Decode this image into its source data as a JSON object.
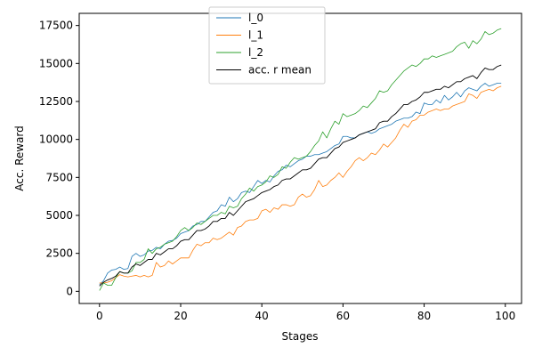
{
  "chart_data": {
    "type": "line",
    "title": "",
    "xlabel": "Stages",
    "ylabel": "Acc. Reward",
    "xlim": [
      -5,
      104
    ],
    "ylim": [
      -800,
      18300
    ],
    "x_ticks": [
      0,
      20,
      40,
      60,
      80,
      100
    ],
    "y_ticks": [
      0,
      2500,
      5000,
      7500,
      10000,
      12500,
      15000,
      17500
    ],
    "x_tick_labels": [
      "0",
      "20",
      "40",
      "60",
      "80",
      "100"
    ],
    "y_tick_labels": [
      "0",
      "2500",
      "5000",
      "7500",
      "10000",
      "12500",
      "15000",
      "17500"
    ],
    "grid": false,
    "legend_position": "top-center",
    "series": [
      {
        "name": "l_0",
        "color": "#1f77b4",
        "values": [
          450,
          700,
          1200,
          1400,
          1450,
          1600,
          1450,
          1500,
          2300,
          2500,
          2300,
          2400,
          2650,
          2700,
          2900,
          2800,
          3100,
          3300,
          3350,
          3500,
          3800,
          3900,
          4000,
          4300,
          4400,
          4600,
          4600,
          4900,
          5200,
          5300,
          5700,
          5600,
          6200,
          5900,
          6100,
          6500,
          6600,
          6500,
          6900,
          7300,
          7100,
          7300,
          7200,
          7600,
          7900,
          8000,
          8300,
          8200,
          8400,
          8600,
          8700,
          8900,
          8900,
          9000,
          9000,
          9100,
          9200,
          9400,
          9600,
          9700,
          10200,
          10200,
          10100,
          10100,
          10300,
          10400,
          10500,
          10400,
          10500,
          10700,
          10800,
          10900,
          11000,
          11200,
          11300,
          11400,
          11400,
          11500,
          11800,
          11700,
          12400,
          12300,
          12300,
          12600,
          12400,
          12900,
          12600,
          12800,
          13100,
          12800,
          13200,
          13400,
          13300,
          13200,
          13500,
          13700,
          13500,
          13600,
          13700,
          13700
        ]
      },
      {
        "name": "l_1",
        "color": "#ff7f0e",
        "values": [
          550,
          550,
          600,
          700,
          900,
          1100,
          1000,
          950,
          1000,
          1050,
          950,
          1050,
          950,
          1050,
          1900,
          1600,
          1700,
          2000,
          1800,
          2000,
          2200,
          2200,
          2200,
          2700,
          3100,
          3000,
          3200,
          3200,
          3500,
          3400,
          3500,
          3700,
          3900,
          3700,
          4200,
          4300,
          4600,
          4700,
          4700,
          4800,
          5300,
          5400,
          5200,
          5500,
          5400,
          5700,
          5700,
          5600,
          5700,
          6200,
          6400,
          6200,
          6300,
          6700,
          7300,
          6900,
          7000,
          7300,
          7500,
          7800,
          7500,
          7900,
          8200,
          8600,
          8800,
          8600,
          8800,
          9100,
          9000,
          9300,
          9700,
          9500,
          9800,
          10100,
          10600,
          11000,
          10800,
          11200,
          11300,
          11600,
          11600,
          11800,
          11900,
          12000,
          11900,
          12000,
          12000,
          12200,
          12300,
          12400,
          12500,
          13000,
          12900,
          12700,
          13100,
          13200,
          13300,
          13200,
          13400,
          13500
        ]
      },
      {
        "name": "l_2",
        "color": "#2ca02c",
        "values": [
          50,
          550,
          400,
          400,
          900,
          1300,
          1200,
          1200,
          1350,
          1900,
          1900,
          2100,
          2800,
          2500,
          2800,
          2900,
          3100,
          3200,
          3300,
          3600,
          4000,
          4200,
          4000,
          4200,
          4500,
          4400,
          4600,
          4800,
          5000,
          5000,
          5200,
          5100,
          5600,
          5500,
          5600,
          6100,
          6400,
          6800,
          6600,
          6900,
          7000,
          7200,
          7600,
          7500,
          7700,
          8200,
          8100,
          8500,
          8800,
          8700,
          8800,
          8900,
          9200,
          9600,
          9900,
          10500,
          10100,
          10700,
          11200,
          11000,
          11700,
          11500,
          11600,
          11700,
          11900,
          12200,
          12100,
          12400,
          12700,
          13200,
          13100,
          13200,
          13600,
          13900,
          14200,
          14500,
          14700,
          14900,
          14800,
          15000,
          15300,
          15300,
          15500,
          15400,
          15500,
          15600,
          15700,
          15800,
          16100,
          16300,
          16400,
          16000,
          16500,
          16300,
          16600,
          17100,
          16900,
          17000,
          17200,
          17300
        ]
      },
      {
        "name": "acc. r mean",
        "color": "#000000",
        "values": [
          350,
          600,
          750,
          850,
          1000,
          1300,
          1200,
          1200,
          1600,
          1800,
          1700,
          1900,
          2100,
          2100,
          2500,
          2400,
          2600,
          2800,
          2800,
          3000,
          3300,
          3400,
          3400,
          3700,
          4000,
          4000,
          4100,
          4300,
          4600,
          4600,
          4800,
          4800,
          5200,
          5000,
          5300,
          5600,
          5900,
          6000,
          6100,
          6300,
          6500,
          6600,
          6700,
          6900,
          7000,
          7300,
          7400,
          7400,
          7600,
          7800,
          8000,
          8000,
          8100,
          8400,
          8700,
          8800,
          8800,
          9100,
          9400,
          9500,
          9800,
          9900,
          10000,
          10100,
          10300,
          10400,
          10500,
          10600,
          10700,
          11100,
          11200,
          11200,
          11500,
          11700,
          12000,
          12300,
          12300,
          12500,
          12600,
          12800,
          13100,
          13100,
          13200,
          13300,
          13300,
          13500,
          13400,
          13600,
          13800,
          13800,
          14000,
          14100,
          14200,
          14000,
          14400,
          14700,
          14600,
          14600,
          14800,
          14900
        ]
      }
    ]
  }
}
